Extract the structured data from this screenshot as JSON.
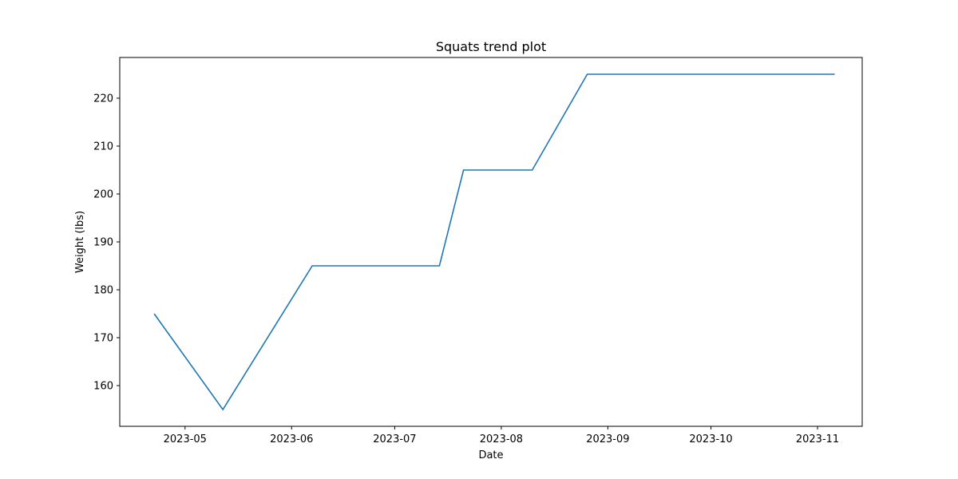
{
  "chart_data": {
    "type": "line",
    "title": "Squats trend plot",
    "xlabel": "Date",
    "ylabel": "Weight (lbs)",
    "x_type": "date",
    "xlim": [
      "2023-04-12",
      "2023-11-14"
    ],
    "ylim": [
      151.5,
      228.5
    ],
    "x_ticks": [
      "2023-05-01",
      "2023-06-01",
      "2023-07-01",
      "2023-08-01",
      "2023-09-01",
      "2023-10-01",
      "2023-11-01"
    ],
    "x_tick_labels": [
      "2023-05",
      "2023-06",
      "2023-07",
      "2023-08",
      "2023-09",
      "2023-10",
      "2023-11"
    ],
    "y_ticks": [
      160,
      170,
      180,
      190,
      200,
      210,
      220
    ],
    "grid": false,
    "legend": "none",
    "series": [
      {
        "color": "#1f77b4",
        "x": [
          "2023-04-22",
          "2023-05-12",
          "2023-06-07",
          "2023-07-14",
          "2023-07-21",
          "2023-08-10",
          "2023-08-26",
          "2023-11-06"
        ],
        "y": [
          175,
          155,
          185,
          185,
          205,
          205,
          225,
          225
        ]
      }
    ]
  }
}
